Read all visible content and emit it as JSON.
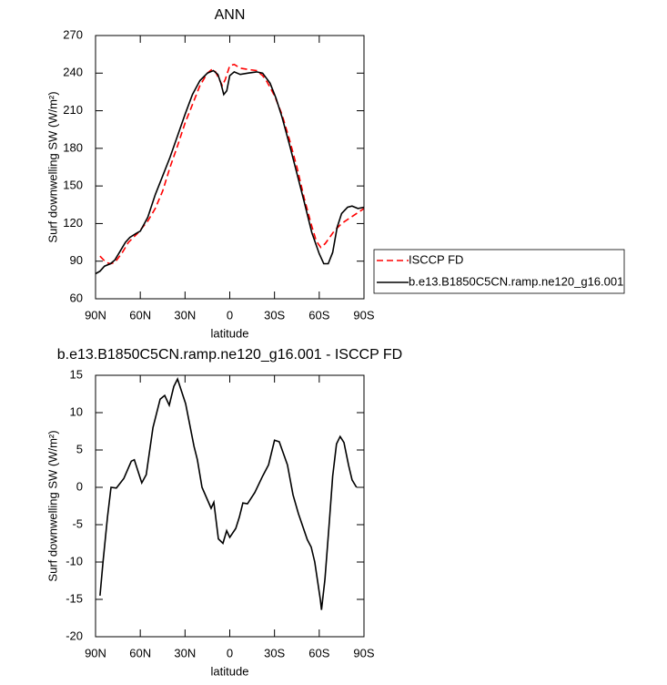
{
  "chart_data": [
    {
      "type": "line",
      "title": "ANN",
      "x_label": "latitude",
      "y_label": "Surf downwelling SW (W/m²)",
      "xlim": [
        90,
        -90
      ],
      "xticks": [
        {
          "value": 90,
          "label": "90N"
        },
        {
          "value": 60,
          "label": "60N"
        },
        {
          "value": 30,
          "label": "30N"
        },
        0,
        {
          "value": -30,
          "label": "30S"
        },
        {
          "value": -60,
          "label": "60S"
        },
        {
          "value": -90,
          "label": "90S"
        }
      ],
      "ylim": [
        60,
        270
      ],
      "yticks": [
        60,
        90,
        120,
        150,
        180,
        210,
        240,
        270
      ],
      "legend": "right",
      "series": [
        {
          "name": "ISCCP FD",
          "color": "#ff0000",
          "line_style": "dashed",
          "x": [
            87,
            83,
            80,
            77,
            72,
            68,
            62,
            55,
            50,
            45,
            40,
            35,
            30,
            25,
            20,
            15,
            12,
            10,
            7,
            5,
            3,
            0,
            -3,
            -7,
            -12,
            -18,
            -22,
            -25,
            -30,
            -35,
            -40,
            -45,
            -50,
            -55,
            -58,
            -61,
            -64,
            -67,
            -70,
            -75,
            -80,
            -85,
            -90
          ],
          "values": [
            94,
            89,
            88,
            89,
            97,
            105,
            112,
            122,
            132,
            146,
            165,
            182,
            200,
            215,
            230,
            240,
            243,
            242,
            235,
            230,
            235,
            246,
            247,
            244,
            243,
            242,
            238,
            233,
            222,
            207,
            187,
            165,
            140,
            118,
            106,
            101,
            104,
            109,
            114,
            120,
            124,
            128,
            132
          ]
        },
        {
          "name": "b.e13.B1850C5CN.ramp.ne120_g16.001",
          "color": "#000000",
          "line_style": "solid",
          "x": [
            90,
            87,
            84,
            80,
            77,
            73,
            70,
            67,
            63,
            60,
            55,
            50,
            45,
            40,
            35,
            30,
            25,
            20,
            15,
            11,
            8,
            6,
            4,
            2,
            0,
            -3,
            -7,
            -12,
            -18,
            -22,
            -27,
            -31,
            -35,
            -40,
            -45,
            -50,
            -55,
            -60,
            -63,
            -66,
            -69,
            -72,
            -75,
            -79,
            -82,
            -86,
            -90
          ],
          "values": [
            80,
            82,
            86,
            88,
            91,
            99,
            105,
            109,
            112,
            114,
            125,
            143,
            158,
            173,
            190,
            207,
            223,
            234,
            240,
            242,
            239,
            232,
            223,
            226,
            238,
            241,
            239,
            240,
            241,
            240,
            232,
            220,
            205,
            183,
            160,
            137,
            113,
            96,
            88,
            88,
            97,
            117,
            128,
            133,
            134,
            132,
            133
          ]
        }
      ]
    },
    {
      "type": "line",
      "title": "b.e13.B1850C5CN.ramp.ne120_g16.001 - ISCCP FD",
      "x_label": "latitude",
      "y_label": "Surf downwelling SW (W/m²)",
      "xlim": [
        90,
        -90
      ],
      "xticks": [
        {
          "value": 90,
          "label": "90N"
        },
        {
          "value": 60,
          "label": "60N"
        },
        {
          "value": 30,
          "label": "30N"
        },
        0,
        {
          "value": -30,
          "label": "30S"
        },
        {
          "value": -60,
          "label": "60S"
        },
        {
          "value": -90,
          "label": "90S"
        }
      ],
      "ylim": [
        -20,
        15
      ],
      "yticks": [
        -20,
        -15,
        -10,
        -5,
        0,
        5,
        10,
        15
      ],
      "series": [
        {
          "color": "#000000",
          "line_style": "solid",
          "x": [
            87,
            85,
            82,
            79.6,
            76,
            71,
            66,
            64,
            59,
            56,
            51.5,
            46.7,
            43.6,
            40.6,
            37.5,
            35,
            29.6,
            24,
            21.7,
            18.6,
            12.5,
            10.7,
            7.6,
            4.6,
            2.1,
            0,
            -4,
            -6.4,
            -8.8,
            -11.9,
            -16.8,
            -22,
            -26,
            -30,
            -33.2,
            -38.7,
            -42.4,
            -46,
            -52,
            -54.6,
            -57,
            -60.7,
            -61.5,
            -63.8,
            -66.8,
            -69,
            -71.6,
            -74,
            -76.6,
            -79.6,
            -82,
            -85
          ],
          "values": [
            -14.5,
            -10,
            -4,
            0,
            -0.1,
            1.2,
            3.5,
            3.7,
            0.6,
            1.7,
            8,
            11.8,
            12.3,
            11,
            13.5,
            14.5,
            11.2,
            5.5,
            3.7,
            0,
            -2.8,
            -2,
            -6.9,
            -7.5,
            -5.8,
            -6.7,
            -5.5,
            -4,
            -2.1,
            -2.2,
            -0.7,
            1.5,
            3,
            6.3,
            6.1,
            3,
            -1,
            -3.5,
            -7,
            -8,
            -10,
            -15,
            -16.4,
            -12.3,
            -4.5,
            1.5,
            5.8,
            6.8,
            6,
            3,
            1,
            0
          ]
        }
      ]
    }
  ]
}
